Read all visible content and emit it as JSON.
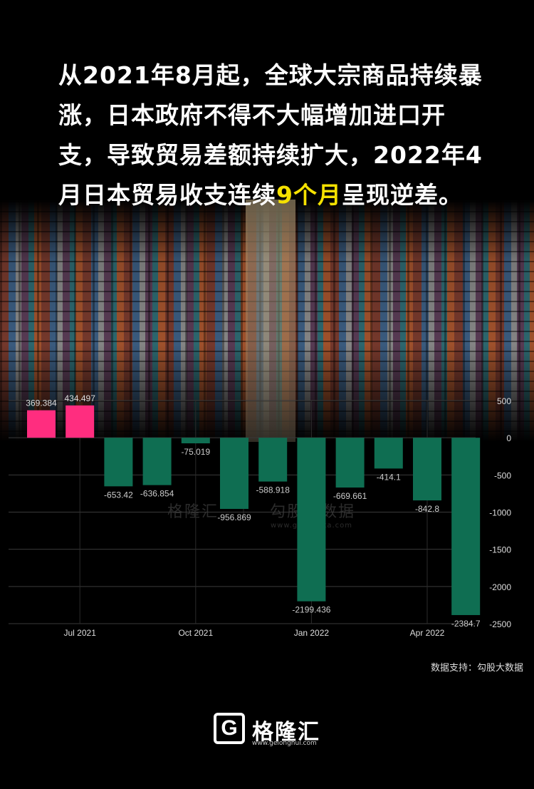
{
  "headline": {
    "before": "从2021年8月起，全球大宗商品持续暴涨，日本政府不得不大幅增加进口开支，导致贸易差额持续扩大，2022年4月日本贸易收支连续",
    "highlight": "9个月",
    "after": "呈现逆差。"
  },
  "source_label": "数据支持：勾股大数据",
  "watermark": {
    "brand": "格隆汇",
    "partner": "勾股大数据",
    "url": "www.gogudata.com"
  },
  "logo": {
    "mark": "G",
    "name": "格隆汇",
    "url": "www.gelonghui.com"
  },
  "colors": {
    "positive": "#ff2d7f",
    "negative": "#0f6e52",
    "highlight": "#f5e100"
  },
  "chart_data": {
    "type": "bar",
    "categories": [
      "2021-06",
      "2021-07",
      "2021-08",
      "2021-09",
      "2021-10",
      "2021-11",
      "2021-12",
      "2022-01",
      "2022-02",
      "2022-03",
      "2022-04",
      "2022-05"
    ],
    "values": [
      369.384,
      434.497,
      -653.42,
      -636.854,
      -75.019,
      -956.869,
      -588.918,
      -2199.436,
      -669.661,
      -414.1,
      -842.8,
      -2384.7
    ],
    "value_labels": [
      "369.384",
      "434.497",
      "-653.42",
      "-636.854",
      "-75.019",
      "-956.869",
      "-588.918",
      "-2199.436",
      "-669.661",
      "-414.1",
      "-842.8",
      "-2384.7"
    ],
    "x_ticks": [
      {
        "index": 1,
        "label": "Jul 2021"
      },
      {
        "index": 4,
        "label": "Oct 2021"
      },
      {
        "index": 7,
        "label": "Jan 2022"
      },
      {
        "index": 10,
        "label": "Apr 2022"
      }
    ],
    "y_ticks": [
      500,
      0,
      -500,
      -1000,
      -1500,
      -2000,
      -2500
    ],
    "ylim": [
      -2500,
      500
    ],
    "grid": true,
    "y_axis_side": "right"
  }
}
